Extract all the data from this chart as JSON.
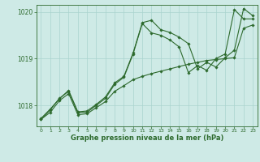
{
  "x": [
    0,
    1,
    2,
    3,
    4,
    5,
    6,
    7,
    8,
    9,
    10,
    11,
    12,
    13,
    14,
    15,
    16,
    17,
    18,
    19,
    20,
    21,
    22,
    23
  ],
  "y_main": [
    1017.7,
    1017.9,
    1018.15,
    1018.3,
    1017.85,
    1017.85,
    1018.0,
    1018.15,
    1018.45,
    1018.6,
    1019.1,
    1019.75,
    1019.55,
    1019.5,
    1019.4,
    1019.25,
    1018.7,
    1018.85,
    1018.75,
    1019.0,
    1019.1,
    1020.05,
    1019.85,
    1019.85
  ],
  "y_low": [
    1017.7,
    1017.85,
    1018.1,
    1018.25,
    1017.8,
    1017.82,
    1017.95,
    1018.08,
    1018.3,
    1018.42,
    1018.55,
    1018.62,
    1018.68,
    1018.73,
    1018.78,
    1018.83,
    1018.88,
    1018.92,
    1018.96,
    1018.98,
    1019.0,
    1019.02,
    1019.65,
    1019.72
  ],
  "y_high": [
    1017.72,
    1017.92,
    1018.14,
    1018.32,
    1017.86,
    1017.88,
    1018.02,
    1018.18,
    1018.48,
    1018.62,
    1019.12,
    1019.77,
    1019.82,
    1019.62,
    1019.56,
    1019.46,
    1019.32,
    1018.78,
    1018.92,
    1018.82,
    1019.02,
    1019.18,
    1020.07,
    1019.92
  ],
  "bg_color": "#ceeae6",
  "line_color": "#2d6a2d",
  "grid_color": "#aad4ce",
  "xlabel": "Graphe pression niveau de la mer (hPa)",
  "ylim": [
    1017.55,
    1020.15
  ],
  "yticks": [
    1018,
    1019,
    1020
  ],
  "xticks": [
    0,
    1,
    2,
    3,
    4,
    5,
    6,
    7,
    8,
    9,
    10,
    11,
    12,
    13,
    14,
    15,
    16,
    17,
    18,
    19,
    20,
    21,
    22,
    23
  ],
  "marker_size": 1.8,
  "line_width": 0.8,
  "figsize": [
    3.2,
    2.0
  ],
  "dpi": 100
}
